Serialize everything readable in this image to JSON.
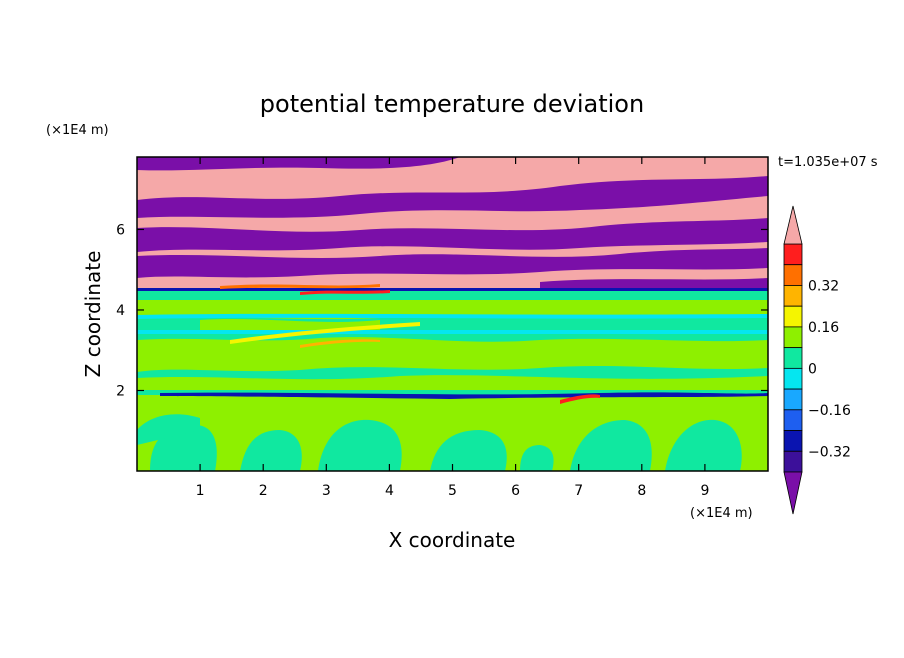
{
  "chart_data": {
    "type": "heatmap",
    "title": "potential temperature deviation",
    "xlabel": "X coordinate",
    "ylabel": "Z coordinate",
    "x_unit": "(×1E4 m)",
    "y_unit": "(×1E4 m)",
    "time_label": "t=1.035e+07 s",
    "xlim": [
      0,
      10
    ],
    "ylim": [
      0,
      7.8
    ],
    "x_ticks": [
      1,
      2,
      3,
      4,
      5,
      6,
      7,
      8,
      9
    ],
    "y_ticks": [
      2,
      4,
      6
    ],
    "colorbar": {
      "tick_labels": [
        "0.32",
        "0.16",
        "0",
        "−0.16",
        "−0.32"
      ],
      "tick_values": [
        0.32,
        0.16,
        0,
        -0.16,
        -0.32
      ],
      "levels": [
        {
          "range": [
            "-inf",
            -0.4
          ],
          "color": "#7a0fa8"
        },
        {
          "range": [
            -0.4,
            -0.32
          ],
          "color": "#3c109a"
        },
        {
          "range": [
            -0.32,
            -0.24
          ],
          "color": "#0a14b0"
        },
        {
          "range": [
            -0.24,
            -0.16
          ],
          "color": "#1e5ff0"
        },
        {
          "range": [
            -0.16,
            -0.08
          ],
          "color": "#19a8ff"
        },
        {
          "range": [
            -0.08,
            0
          ],
          "color": "#05e6f0"
        },
        {
          "range": [
            0,
            0.08
          ],
          "color": "#10e8a0"
        },
        {
          "range": [
            0.08,
            0.16
          ],
          "color": "#8ef000"
        },
        {
          "range": [
            0.16,
            0.24
          ],
          "color": "#f5f500"
        },
        {
          "range": [
            0.24,
            0.32
          ],
          "color": "#ffb400"
        },
        {
          "range": [
            0.32,
            0.4
          ],
          "color": "#ff7000"
        },
        {
          "range": [
            0.4,
            0.48
          ],
          "color": "#ff1e1e"
        },
        {
          "range": [
            0.48,
            "inf"
          ],
          "color": "#f5a8a8"
        }
      ]
    },
    "field_regions": [
      {
        "name": "upper-layer-pink-purple-bands",
        "z_range": [
          4.6,
          7.8
        ],
        "value": "alternating >0.48 and <-0.4"
      },
      {
        "name": "mid-layer-green",
        "z_range": [
          2.0,
          4.6
        ],
        "value": "0 to 0.08 with 0.08–0.16 patches"
      },
      {
        "name": "lower-layer-plumes",
        "z_range": [
          0,
          2.0
        ],
        "value": "0 to 0.16 convective plumes"
      }
    ]
  }
}
